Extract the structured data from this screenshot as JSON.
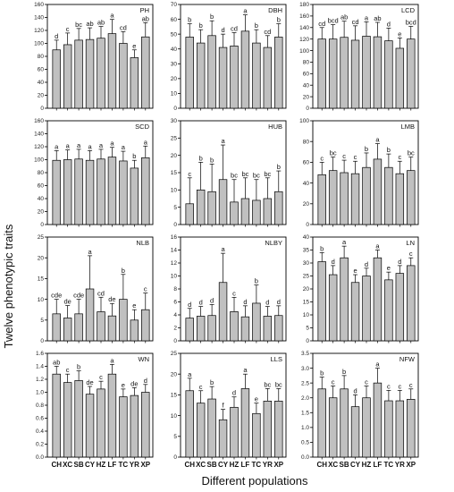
{
  "ylabel": "Twelve phenotypic traits",
  "xlabel": "Different populations",
  "chart_data": [
    {
      "type": "bar",
      "title": "PH",
      "categories": [
        "CH",
        "XC",
        "SB",
        "CY",
        "HZ",
        "LF",
        "TC",
        "YR",
        "XP"
      ],
      "values": [
        90,
        98,
        105,
        106,
        108,
        115,
        100,
        78,
        110
      ],
      "errors": [
        15,
        18,
        18,
        18,
        18,
        22,
        18,
        12,
        22
      ],
      "letters": [
        "d",
        "c",
        "bc",
        "ab",
        "ab",
        "a",
        "cd",
        "e",
        "ab"
      ],
      "ylim": [
        0,
        160
      ],
      "yticks": [
        0,
        20,
        40,
        60,
        80,
        100,
        120,
        140,
        160
      ]
    },
    {
      "type": "bar",
      "title": "DBH",
      "categories": [
        "CH",
        "XC",
        "SB",
        "CY",
        "HZ",
        "LF",
        "TC",
        "YR",
        "XP"
      ],
      "values": [
        48,
        44,
        49,
        41,
        42,
        52,
        44,
        41,
        48
      ],
      "errors": [
        9,
        9,
        10,
        9,
        9,
        11,
        9,
        8,
        9
      ],
      "letters": [
        "b",
        "b",
        "b",
        "d",
        "cd",
        "a",
        "b",
        "cd",
        "b"
      ],
      "ylim": [
        0,
        70
      ],
      "yticks": [
        0,
        10,
        20,
        30,
        40,
        50,
        60,
        70
      ]
    },
    {
      "type": "bar",
      "title": "LCD",
      "categories": [
        "CH",
        "XC",
        "SB",
        "CY",
        "HZ",
        "LF",
        "TC",
        "YR",
        "XP"
      ],
      "values": [
        120,
        120,
        123,
        118,
        125,
        124,
        117,
        104,
        120
      ],
      "errors": [
        20,
        25,
        28,
        25,
        25,
        25,
        22,
        18,
        22
      ],
      "letters": [
        "cd",
        "bcd",
        "ab",
        "cd",
        "a",
        "ab",
        "d",
        "e",
        "bcd"
      ],
      "ylim": [
        0,
        180
      ],
      "yticks": [
        0,
        20,
        40,
        60,
        80,
        100,
        120,
        140,
        160,
        180
      ]
    },
    {
      "type": "bar",
      "title": "SCD",
      "categories": [
        "CH",
        "XC",
        "SB",
        "CY",
        "HZ",
        "LF",
        "TC",
        "YR",
        "XP"
      ],
      "values": [
        99,
        100,
        101,
        99,
        101,
        104,
        98,
        87,
        103
      ],
      "errors": [
        15,
        15,
        15,
        15,
        15,
        15,
        15,
        12,
        18
      ],
      "letters": [
        "a",
        "a",
        "a",
        "a",
        "a",
        "a",
        "a",
        "b",
        "a"
      ],
      "ylim": [
        0,
        160
      ],
      "yticks": [
        0,
        20,
        40,
        60,
        80,
        100,
        120,
        140,
        160
      ]
    },
    {
      "type": "bar",
      "title": "HUB",
      "categories": [
        "CH",
        "XC",
        "SB",
        "CY",
        "HZ",
        "LF",
        "TC",
        "YR",
        "XP"
      ],
      "values": [
        6,
        10,
        9.5,
        13,
        6.5,
        7.5,
        7,
        7.5,
        9.5
      ],
      "errors": [
        7.5,
        8,
        8,
        10,
        6.5,
        6,
        6,
        6,
        6
      ],
      "letters": [
        "c",
        "b",
        "b",
        "a",
        "bc",
        "bc",
        "bc",
        "bc",
        "b"
      ],
      "ylim": [
        0,
        30
      ],
      "yticks": [
        0,
        5,
        10,
        15,
        20,
        25,
        30
      ]
    },
    {
      "type": "bar",
      "title": "LMB",
      "categories": [
        "CH",
        "XC",
        "SB",
        "CY",
        "HZ",
        "LF",
        "TC",
        "YR",
        "XP"
      ],
      "values": [
        48,
        52,
        50,
        49,
        55,
        63,
        55,
        49,
        52
      ],
      "errors": [
        12,
        13,
        12,
        12,
        14,
        15,
        13,
        12,
        13
      ],
      "letters": [
        "c",
        "bc",
        "c",
        "c",
        "b",
        "a",
        "b",
        "c",
        "bc"
      ],
      "ylim": [
        0,
        100
      ],
      "yticks": [
        0,
        20,
        40,
        60,
        80,
        100
      ]
    },
    {
      "type": "bar",
      "title": "NLB",
      "categories": [
        "CH",
        "XC",
        "SB",
        "CY",
        "HZ",
        "LF",
        "TC",
        "YR",
        "XP"
      ],
      "values": [
        6.5,
        5.5,
        6.5,
        12.5,
        7,
        6,
        10,
        5,
        7.5
      ],
      "errors": [
        3.5,
        3,
        3.5,
        8,
        3.5,
        3,
        6,
        2.5,
        4
      ],
      "letters": [
        "cde",
        "de",
        "cde",
        "a",
        "cd",
        "de",
        "b",
        "e",
        "c"
      ],
      "ylim": [
        0,
        25
      ],
      "yticks": [
        0,
        5,
        10,
        15,
        20,
        25
      ]
    },
    {
      "type": "bar",
      "title": "NLBY",
      "categories": [
        "CH",
        "XC",
        "SB",
        "CY",
        "HZ",
        "LF",
        "TC",
        "YR",
        "XP"
      ],
      "values": [
        3.5,
        3.8,
        3.9,
        9,
        4.5,
        3.7,
        5.8,
        3.8,
        3.9
      ],
      "errors": [
        1.5,
        1.5,
        1.7,
        4.5,
        2.2,
        1.7,
        2.8,
        1.5,
        1.5
      ],
      "letters": [
        "d",
        "d",
        "d",
        "a",
        "c",
        "d",
        "b",
        "d",
        "d"
      ],
      "ylim": [
        0,
        16
      ],
      "yticks": [
        0,
        2,
        4,
        6,
        8,
        10,
        12,
        14,
        16
      ]
    },
    {
      "type": "bar",
      "title": "LN",
      "categories": [
        "CH",
        "XC",
        "SB",
        "CY",
        "HZ",
        "LF",
        "TC",
        "YR",
        "XP"
      ],
      "values": [
        30.5,
        25.5,
        32,
        22.5,
        25,
        32,
        23.5,
        26,
        29
      ],
      "errors": [
        3.5,
        3.5,
        4.5,
        3,
        3,
        3,
        3,
        3,
        3
      ],
      "letters": [
        "b",
        "d",
        "a",
        "e",
        "d",
        "a",
        "e",
        "d",
        "c"
      ],
      "ylim": [
        0,
        40
      ],
      "yticks": [
        0,
        5,
        10,
        15,
        20,
        25,
        30,
        35,
        40
      ]
    },
    {
      "type": "bar",
      "title": "WN",
      "categories": [
        "CH",
        "XC",
        "SB",
        "CY",
        "HZ",
        "LF",
        "TC",
        "YR",
        "XP"
      ],
      "values": [
        1.28,
        1.15,
        1.18,
        0.97,
        1.05,
        1.28,
        0.93,
        0.95,
        1.0
      ],
      "errors": [
        0.12,
        0.13,
        0.15,
        0.12,
        0.12,
        0.15,
        0.12,
        0.12,
        0.12
      ],
      "letters": [
        "ab",
        "c",
        "b",
        "de",
        "c",
        "a",
        "e",
        "de",
        "d"
      ],
      "ylim": [
        0,
        1.6
      ],
      "yticks": [
        0,
        0.2,
        0.4,
        0.6,
        0.8,
        1.0,
        1.2,
        1.4,
        1.6
      ]
    },
    {
      "type": "bar",
      "title": "LLS",
      "categories": [
        "CH",
        "XC",
        "SB",
        "CY",
        "HZ",
        "LF",
        "TC",
        "YR",
        "XP"
      ],
      "values": [
        16,
        13,
        14,
        9,
        12,
        16.5,
        10.5,
        13.5,
        13.5
      ],
      "errors": [
        3,
        3,
        3,
        2.5,
        2.5,
        3.5,
        2.5,
        3,
        3
      ],
      "letters": [
        "a",
        "c",
        "b",
        "f",
        "d",
        "a",
        "e",
        "bc",
        "bc"
      ],
      "ylim": [
        0,
        25
      ],
      "yticks": [
        0,
        5,
        10,
        15,
        20,
        25
      ]
    },
    {
      "type": "bar",
      "title": "NFW",
      "categories": [
        "CH",
        "XC",
        "SB",
        "CY",
        "HZ",
        "LF",
        "TC",
        "YR",
        "XP"
      ],
      "values": [
        2.3,
        2.0,
        2.3,
        1.7,
        2.0,
        2.5,
        1.9,
        1.9,
        1.95
      ],
      "errors": [
        0.4,
        0.4,
        0.45,
        0.4,
        0.4,
        0.5,
        0.35,
        0.35,
        0.35
      ],
      "letters": [
        "b",
        "c",
        "b",
        "d",
        "c",
        "a",
        "c",
        "c",
        "c"
      ],
      "ylim": [
        0,
        3.5
      ],
      "yticks": [
        0,
        0.5,
        1.0,
        1.5,
        2.0,
        2.5,
        3.0,
        3.5
      ]
    }
  ]
}
